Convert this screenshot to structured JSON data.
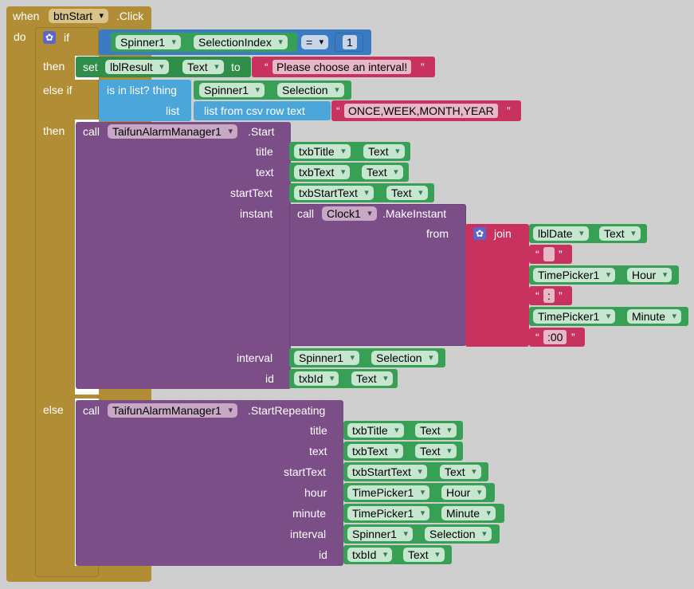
{
  "event": {
    "when": "when",
    "component": "btnStart",
    "event_name": ".Click",
    "do": "do"
  },
  "if_block": {
    "if": "if",
    "then": "then",
    "else_if": "else if",
    "then2": "then",
    "else": "else"
  },
  "cond": {
    "component": "Spinner1",
    "property": "SelectionIndex",
    "op": "=",
    "value": "1"
  },
  "set": {
    "set": "set",
    "component": "lblResult",
    "property": "Text",
    "to": "to",
    "string": "Please choose an interval!"
  },
  "isinlist": {
    "label": "is in list? thing",
    "list": "list",
    "comp": "Spinner1",
    "prop": "Selection",
    "csv": "list from csv row  text",
    "csvtext": "ONCE,WEEK,MONTH,YEAR"
  },
  "start": {
    "call": "call",
    "component": "TaifunAlarmManager1",
    "method": ".Start",
    "p_title": "title",
    "p_text": "text",
    "p_start": "startText",
    "p_instant": "instant",
    "p_interval": "interval",
    "p_id": "id",
    "title_c": "txbTitle",
    "title_p": "Text",
    "text_c": "txbText",
    "text_p": "Text",
    "start_c": "txbStartText",
    "start_p": "Text",
    "interval_c": "Spinner1",
    "interval_p": "Selection",
    "id_c": "txbId",
    "id_p": "Text"
  },
  "clock": {
    "call": "call",
    "component": "Clock1",
    "method": ".MakeInstant",
    "from": "from",
    "join": "join",
    "date_c": "lblDate",
    "date_p": "Text",
    "s1": " ",
    "tp1_c": "TimePicker1",
    "tp1_p": "Hour",
    "s2": ":",
    "tp2_c": "TimePicker1",
    "tp2_p": "Minute",
    "s3": ":00"
  },
  "repeat": {
    "call": "call",
    "component": "TaifunAlarmManager1",
    "method": ".StartRepeating",
    "p_title": "title",
    "p_text": "text",
    "p_start": "startText",
    "p_hour": "hour",
    "p_minute": "minute",
    "p_interval": "interval",
    "p_id": "id",
    "title_c": "txbTitle",
    "title_p": "Text",
    "text_c": "txbText",
    "text_p": "Text",
    "start_c": "txbStartText",
    "start_p": "Text",
    "hour_c": "TimePicker1",
    "hour_p": "Hour",
    "minute_c": "TimePicker1",
    "minute_p": "Minute",
    "interval_c": "Spinner1",
    "interval_p": "Selection",
    "id_c": "txbId",
    "id_p": "Text"
  },
  "colors": {
    "event": "#b18e35",
    "control": "#b18e35",
    "logic_compare": "#3b7bc2",
    "getter": "#38a055",
    "setter": "#2f8f4a",
    "list": "#4ba6d9",
    "string": "#c7325f",
    "procedure": "#7b4e87",
    "join": "#c7325f",
    "gear": "#5b66c8"
  }
}
